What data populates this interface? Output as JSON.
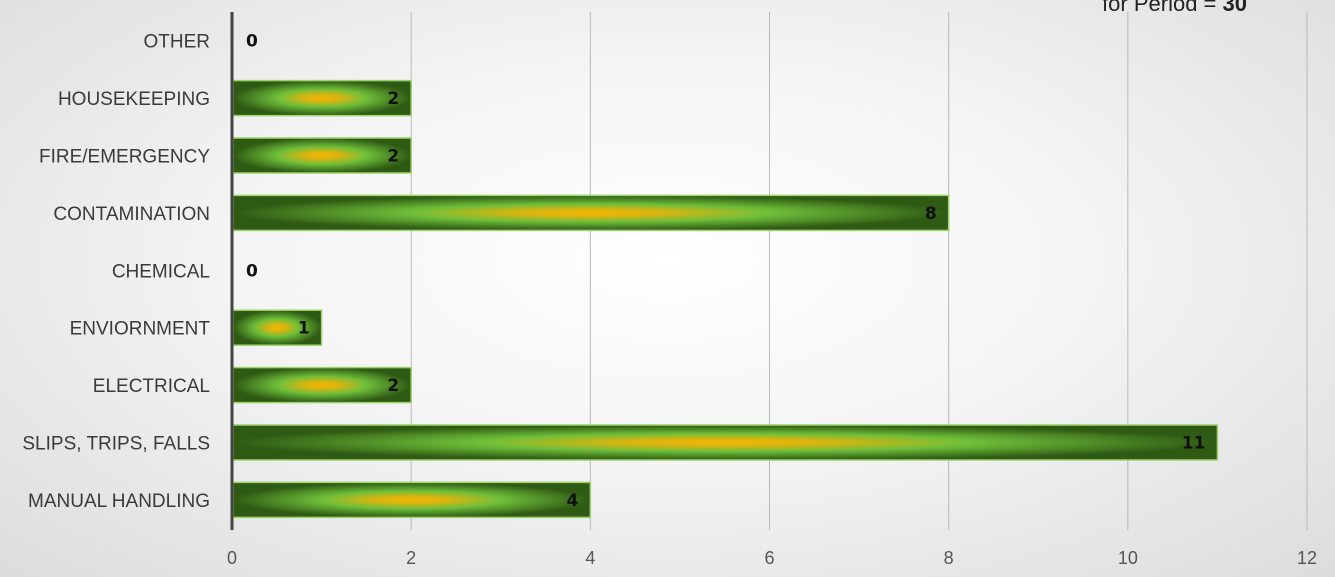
{
  "period_label": {
    "text": "for Period = ",
    "total": "30"
  },
  "chart_data": {
    "type": "bar",
    "orientation": "horizontal",
    "categories": [
      "OTHER",
      "HOUSEKEEPING",
      "FIRE/EMERGENCY",
      "CONTAMINATION",
      "CHEMICAL",
      "ENVIORNMENT",
      "ELECTRICAL",
      "SLIPS, TRIPS, FALLS",
      "MANUAL HANDLING"
    ],
    "values": [
      0,
      2,
      2,
      8,
      0,
      1,
      2,
      11,
      4
    ],
    "xlim": [
      0,
      12
    ],
    "xticks": [
      0,
      2,
      4,
      6,
      8,
      10,
      12
    ],
    "grid": true,
    "data_labels": true,
    "bar_colors": {
      "edge": "#2f5a14",
      "mid": "#6fbf3a",
      "center": "#f2b705",
      "outline": "#9bd36a"
    }
  }
}
